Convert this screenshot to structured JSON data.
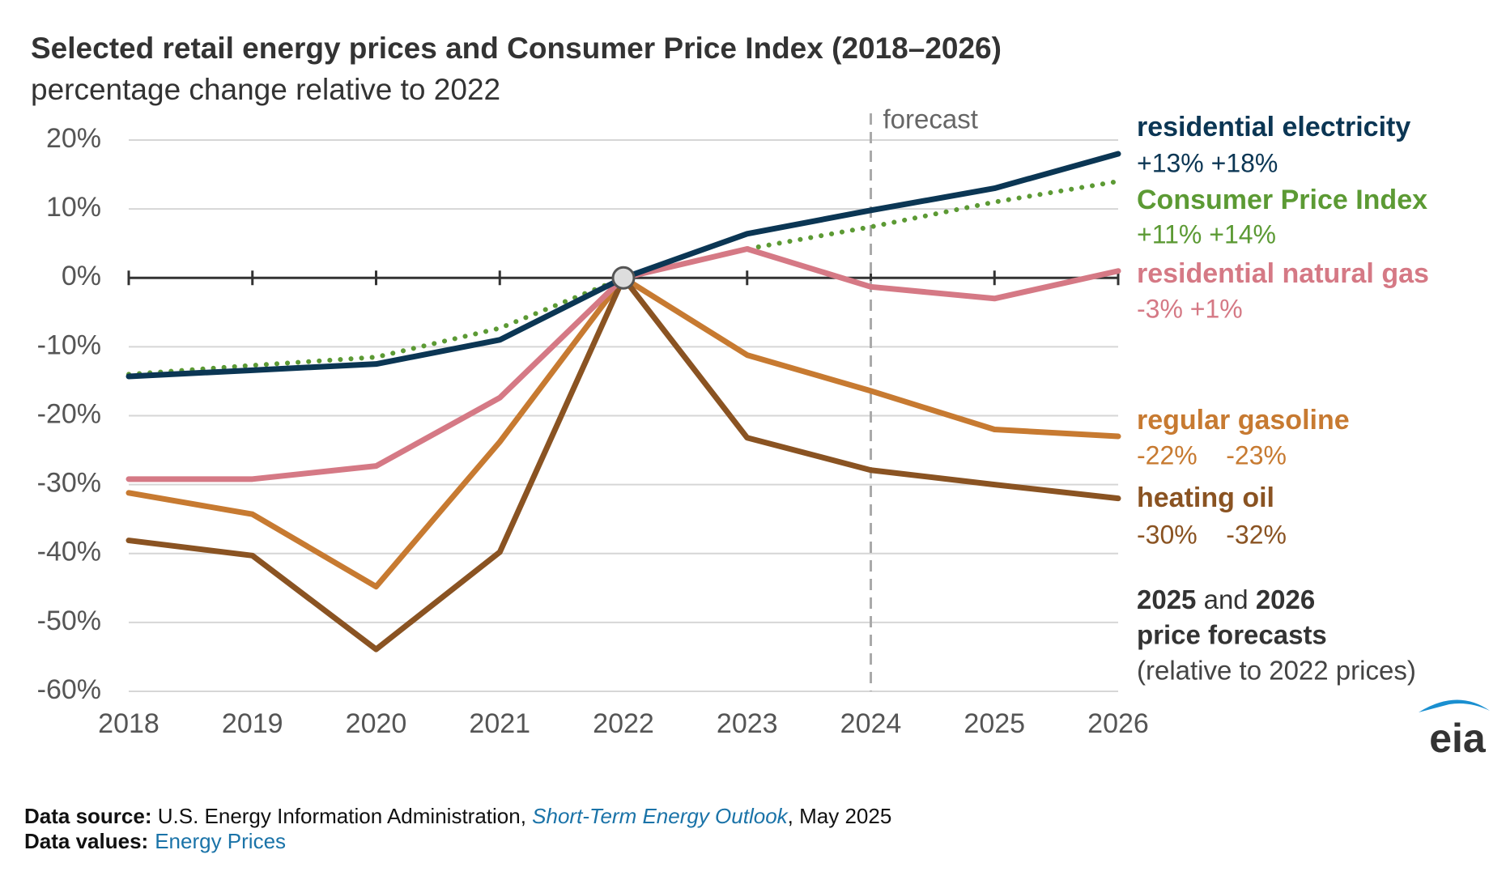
{
  "chart_data": {
    "type": "line",
    "title": "Selected retail energy prices and Consumer Price Index (2018–2026)",
    "subtitle": "percentage change relative to 2022",
    "x": [
      2018,
      2019,
      2020,
      2021,
      2022,
      2023,
      2024,
      2025,
      2026
    ],
    "xlim": [
      2018,
      2026
    ],
    "xticks": [
      2018,
      2019,
      2020,
      2021,
      2022,
      2023,
      2024,
      2025,
      2026
    ],
    "ylim": [
      -60,
      20
    ],
    "yticks": [
      {
        "value": 20,
        "label": "20%"
      },
      {
        "value": 10,
        "label": "10%"
      },
      {
        "value": 0,
        "label": "0%"
      },
      {
        "value": -10,
        "label": "-10%"
      },
      {
        "value": -20,
        "label": "-20%"
      },
      {
        "value": -30,
        "label": "-30%"
      },
      {
        "value": -40,
        "label": "-40%"
      },
      {
        "value": -50,
        "label": "-50%"
      },
      {
        "value": -60,
        "label": "-60%"
      }
    ],
    "grid": true,
    "forecast": {
      "x": 2024,
      "label": "forecast"
    },
    "series": [
      {
        "name": "residential electricity",
        "color": "#0b3654",
        "style": "solid",
        "change_label": "+13% +18%",
        "values": [
          -14.3,
          -13.4,
          -12.5,
          -9,
          0,
          6.4,
          9.8,
          13,
          18
        ]
      },
      {
        "name": "Consumer Price Index",
        "color": "#5c9a34",
        "style": "dotted",
        "change_label": "+11% +14%",
        "values": [
          -14,
          -12.7,
          -11.5,
          -7.3,
          0,
          4.2,
          7.4,
          11,
          14
        ]
      },
      {
        "name": "residential natural gas",
        "color": "#d57985",
        "style": "solid",
        "change_label": "-3% +1%",
        "values": [
          -29.2,
          -29.2,
          -27.3,
          -17.4,
          0,
          4.2,
          -1.3,
          -3,
          1
        ]
      },
      {
        "name": "regular gasoline",
        "color": "#c77a31",
        "style": "solid",
        "change_label": "-22%    -23%",
        "values": [
          -31.2,
          -34.3,
          -44.8,
          -23.8,
          0,
          -11.2,
          -16.4,
          -22,
          -23
        ]
      },
      {
        "name": "heating oil",
        "color": "#8a5322",
        "style": "solid",
        "change_label": "-30%    -32%",
        "values": [
          -38.1,
          -40.3,
          -53.9,
          -39.8,
          0,
          -23.2,
          -27.9,
          -30,
          -32
        ]
      }
    ],
    "note": {
      "bold1": "2025",
      "mid": " and ",
      "bold2": "2026",
      "line2": "price forecasts",
      "line3": "(relative to 2022 prices)"
    },
    "footer": {
      "source_label": "Data source:",
      "source_text": " U.S. Energy Information Administration, ",
      "source_link": "Short-Term Energy Outlook",
      "source_date": ", May 2025",
      "values_label": "Data values:",
      "values_link": "Energy Prices"
    },
    "logo": "eia"
  }
}
